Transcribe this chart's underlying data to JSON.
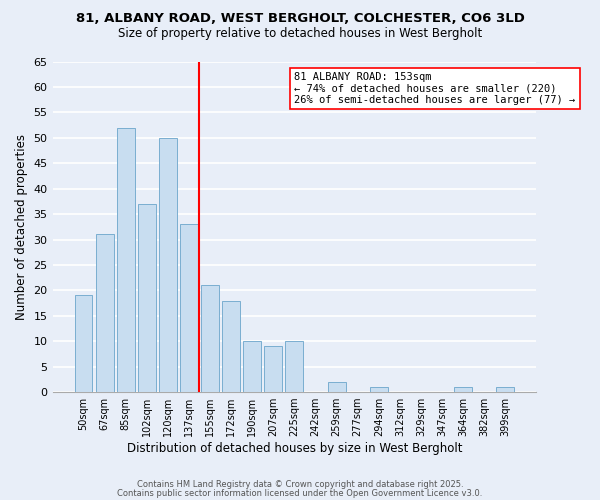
{
  "title1": "81, ALBANY ROAD, WEST BERGHOLT, COLCHESTER, CO6 3LD",
  "title2": "Size of property relative to detached houses in West Bergholt",
  "xlabel": "Distribution of detached houses by size in West Bergholt",
  "ylabel": "Number of detached properties",
  "bar_labels": [
    "50sqm",
    "67sqm",
    "85sqm",
    "102sqm",
    "120sqm",
    "137sqm",
    "155sqm",
    "172sqm",
    "190sqm",
    "207sqm",
    "225sqm",
    "242sqm",
    "259sqm",
    "277sqm",
    "294sqm",
    "312sqm",
    "329sqm",
    "347sqm",
    "364sqm",
    "382sqm",
    "399sqm"
  ],
  "bar_heights": [
    19,
    31,
    52,
    37,
    50,
    33,
    21,
    18,
    10,
    9,
    10,
    0,
    2,
    0,
    1,
    0,
    0,
    0,
    1,
    0,
    1
  ],
  "bar_color": "#c8ddf0",
  "bar_edge_color": "#7aaed0",
  "ylim": [
    0,
    65
  ],
  "yticks": [
    0,
    5,
    10,
    15,
    20,
    25,
    30,
    35,
    40,
    45,
    50,
    55,
    60,
    65
  ],
  "vline_color": "red",
  "vline_x_index": 6,
  "annotation_title": "81 ALBANY ROAD: 153sqm",
  "annotation_line1": "← 74% of detached houses are smaller (220)",
  "annotation_line2": "26% of semi-detached houses are larger (77) →",
  "footer1": "Contains HM Land Registry data © Crown copyright and database right 2025.",
  "footer2": "Contains public sector information licensed under the Open Government Licence v3.0.",
  "background_color": "#e8eef8",
  "grid_color": "#ffffff"
}
